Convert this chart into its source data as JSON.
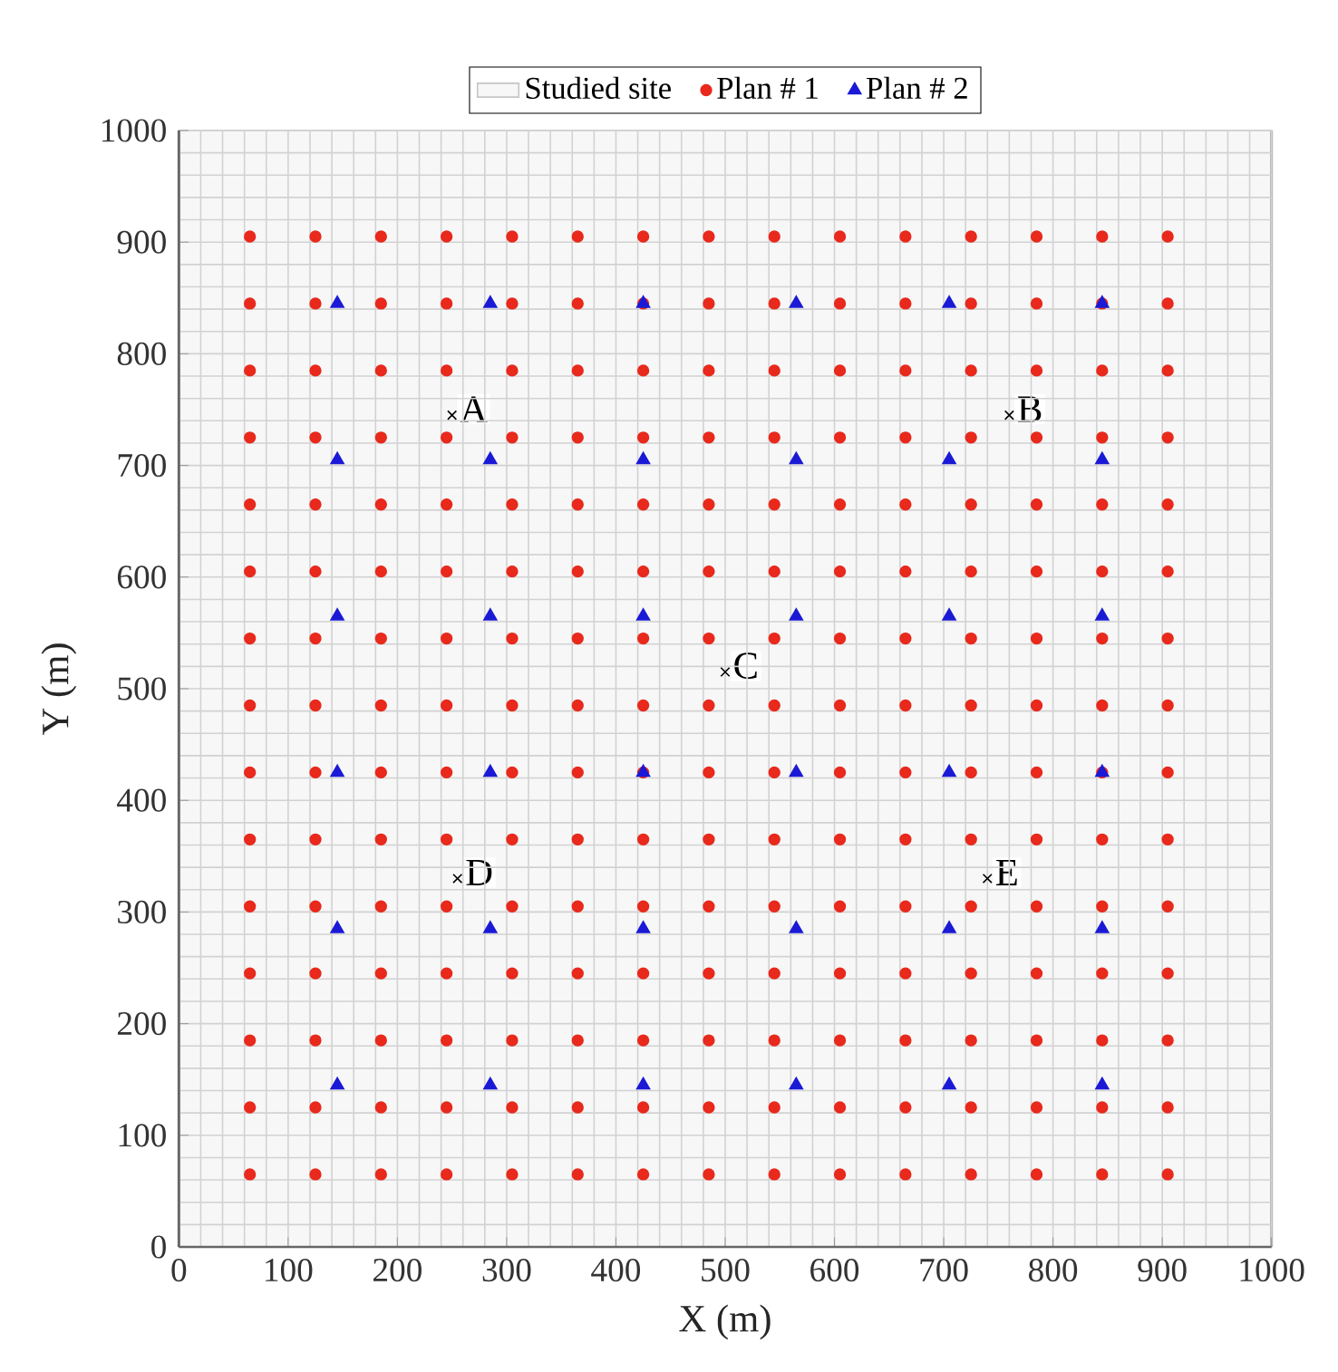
{
  "chart_data": {
    "type": "scatter",
    "xlabel": "X (m)",
    "ylabel": "Y (m)",
    "xlim": [
      0,
      1000
    ],
    "ylim": [
      0,
      1000
    ],
    "xticks": [
      0,
      100,
      200,
      300,
      400,
      500,
      600,
      700,
      800,
      900,
      1000
    ],
    "yticks": [
      0,
      100,
      200,
      300,
      400,
      500,
      600,
      700,
      800,
      900,
      1000
    ],
    "grid": true,
    "legend": "top",
    "bands": [
      {
        "axis": "x",
        "from": 0,
        "to": 1000,
        "label": "Studied site",
        "color": "#f7f7f7"
      }
    ],
    "series": [
      {
        "name": "Plan # 1",
        "color": "#e8291c",
        "marker": "circle",
        "x": [
          65,
          125,
          185,
          245,
          305,
          365,
          425,
          485,
          545,
          605,
          665,
          725,
          785,
          845,
          905,
          65,
          125,
          185,
          245,
          305,
          365,
          425,
          485,
          545,
          605,
          665,
          725,
          785,
          845,
          905,
          65,
          125,
          185,
          245,
          305,
          365,
          425,
          485,
          545,
          605,
          665,
          725,
          785,
          845,
          905,
          65,
          125,
          185,
          245,
          305,
          365,
          425,
          485,
          545,
          605,
          665,
          725,
          785,
          845,
          905,
          65,
          125,
          185,
          245,
          305,
          365,
          425,
          485,
          545,
          605,
          665,
          725,
          785,
          845,
          905,
          65,
          125,
          185,
          245,
          305,
          365,
          425,
          485,
          545,
          605,
          665,
          725,
          785,
          845,
          905,
          65,
          125,
          185,
          245,
          305,
          365,
          425,
          485,
          545,
          605,
          665,
          725,
          785,
          845,
          905,
          65,
          125,
          185,
          245,
          305,
          365,
          425,
          485,
          545,
          605,
          665,
          725,
          785,
          845,
          905,
          65,
          125,
          185,
          245,
          305,
          365,
          425,
          485,
          545,
          605,
          665,
          725,
          785,
          845,
          905,
          65,
          125,
          185,
          245,
          305,
          365,
          425,
          485,
          545,
          605,
          665,
          725,
          785,
          845,
          905,
          65,
          125,
          185,
          245,
          305,
          365,
          425,
          485,
          545,
          605,
          665,
          725,
          785,
          845,
          905,
          65,
          125,
          185,
          245,
          305,
          365,
          425,
          485,
          545,
          605,
          665,
          725,
          785,
          845,
          905,
          65,
          125,
          185,
          245,
          305,
          365,
          425,
          485,
          545,
          605,
          665,
          725,
          785,
          845,
          905,
          65,
          125,
          185,
          245,
          305,
          365,
          425,
          485,
          545,
          605,
          665,
          725,
          785,
          845,
          905,
          65,
          125,
          185,
          245,
          305,
          365,
          425,
          485,
          545,
          605,
          665,
          725,
          785,
          845,
          905
        ],
        "values": [
          65,
          65,
          65,
          65,
          65,
          65,
          65,
          65,
          65,
          65,
          65,
          65,
          65,
          65,
          65,
          125,
          125,
          125,
          125,
          125,
          125,
          125,
          125,
          125,
          125,
          125,
          125,
          125,
          125,
          125,
          185,
          185,
          185,
          185,
          185,
          185,
          185,
          185,
          185,
          185,
          185,
          185,
          185,
          185,
          185,
          245,
          245,
          245,
          245,
          245,
          245,
          245,
          245,
          245,
          245,
          245,
          245,
          245,
          245,
          245,
          305,
          305,
          305,
          305,
          305,
          305,
          305,
          305,
          305,
          305,
          305,
          305,
          305,
          305,
          305,
          365,
          365,
          365,
          365,
          365,
          365,
          365,
          365,
          365,
          365,
          365,
          365,
          365,
          365,
          365,
          425,
          425,
          425,
          425,
          425,
          425,
          425,
          425,
          425,
          425,
          425,
          425,
          425,
          425,
          425,
          485,
          485,
          485,
          485,
          485,
          485,
          485,
          485,
          485,
          485,
          485,
          485,
          485,
          485,
          485,
          545,
          545,
          545,
          545,
          545,
          545,
          545,
          545,
          545,
          545,
          545,
          545,
          545,
          545,
          545,
          605,
          605,
          605,
          605,
          605,
          605,
          605,
          605,
          605,
          605,
          605,
          605,
          605,
          605,
          605,
          665,
          665,
          665,
          665,
          665,
          665,
          665,
          665,
          665,
          665,
          665,
          665,
          665,
          665,
          665,
          725,
          725,
          725,
          725,
          725,
          725,
          725,
          725,
          725,
          725,
          725,
          725,
          725,
          725,
          725,
          785,
          785,
          785,
          785,
          785,
          785,
          785,
          785,
          785,
          785,
          785,
          785,
          785,
          785,
          785,
          845,
          845,
          845,
          845,
          845,
          845,
          845,
          845,
          845,
          845,
          845,
          845,
          845,
          845,
          845,
          905,
          905,
          905,
          905,
          905,
          905,
          905,
          905,
          905,
          905,
          905,
          905,
          905,
          905,
          905
        ]
      },
      {
        "name": "Plan # 2",
        "color": "#1a1ad6",
        "marker": "triangle",
        "x": [
          145,
          285,
          425,
          565,
          705,
          845,
          145,
          285,
          425,
          565,
          705,
          845,
          145,
          285,
          425,
          565,
          705,
          845,
          145,
          285,
          425,
          565,
          705,
          845,
          145,
          285,
          425,
          565,
          705,
          845,
          145,
          285,
          425,
          565,
          705,
          845
        ],
        "values": [
          145,
          145,
          145,
          145,
          145,
          145,
          285,
          285,
          285,
          285,
          285,
          285,
          425,
          425,
          425,
          425,
          425,
          425,
          565,
          565,
          565,
          565,
          565,
          565,
          705,
          705,
          705,
          705,
          705,
          705,
          845,
          845,
          845,
          845,
          845,
          845
        ]
      },
      {
        "color": "#000000",
        "marker": "cross",
        "x": [
          250,
          760,
          500,
          255,
          740
        ],
        "values": [
          745,
          745,
          515,
          330,
          330
        ]
      }
    ],
    "annotations": [
      {
        "text": "A",
        "x": 250,
        "y": 745
      },
      {
        "text": "B",
        "x": 760,
        "y": 745
      },
      {
        "text": "C",
        "x": 500,
        "y": 515
      },
      {
        "text": "D",
        "x": 255,
        "y": 330
      },
      {
        "text": "E",
        "x": 740,
        "y": 330
      }
    ]
  }
}
